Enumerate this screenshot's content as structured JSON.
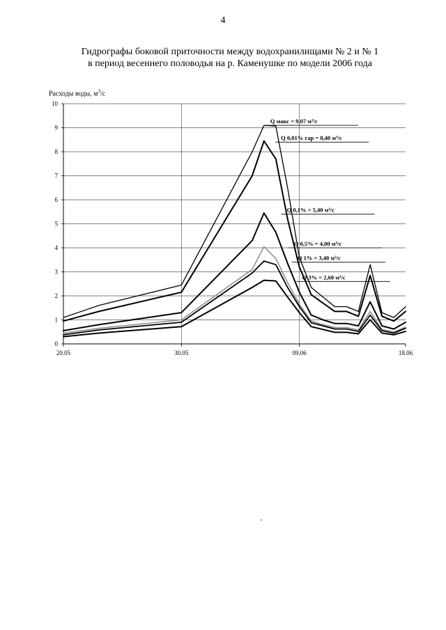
{
  "page": {
    "number": "4"
  },
  "title": {
    "line1": "Гидрографы боковой приточности между водохранилищами № 2 и № 1",
    "line2": "в период весеннего половодья на р. Каменушке по модели 2006 года"
  },
  "chart_data": {
    "type": "line",
    "ylabel_main": "Расходы воды, м",
    "ylabel_sup": "3",
    "ylabel_tail": "/с",
    "ylim": [
      0,
      10
    ],
    "yticks": [
      "0",
      "1",
      "2",
      "3",
      "4",
      "5",
      "6",
      "7",
      "8",
      "9",
      "10"
    ],
    "xrange": [
      0,
      29
    ],
    "xticks": [
      {
        "label": "20.05",
        "x": 0
      },
      {
        "label": "30.05",
        "x": 10
      },
      {
        "label": "09.06",
        "x": 20
      },
      {
        "label": "18.06",
        "x": 29
      }
    ],
    "grid": true,
    "x": [
      0,
      3,
      10,
      16,
      17,
      18,
      19,
      20,
      21,
      22,
      23,
      24,
      25,
      26,
      27,
      28,
      29
    ],
    "series": [
      {
        "color": "#000000",
        "width": 1.3,
        "values": [
          1.1,
          1.6,
          2.45,
          8.0,
          9.1,
          9.07,
          6.5,
          3.6,
          2.35,
          1.95,
          1.55,
          1.55,
          1.35,
          3.3,
          1.3,
          1.1,
          1.55
        ],
        "annotation": {
          "text": "Q макс = 9,07 м³/с",
          "at_x": 17.3,
          "y": 9.1
        }
      },
      {
        "color": "#000000",
        "width": 2,
        "values": [
          0.95,
          1.35,
          2.15,
          7.0,
          8.45,
          7.7,
          5.2,
          3.2,
          2.05,
          1.7,
          1.35,
          1.35,
          1.15,
          2.85,
          1.15,
          0.95,
          1.35
        ],
        "annotation": {
          "text": "Q 0,01% гар = 8,40 м³/с",
          "at_x": 18.2,
          "y": 8.4
        }
      },
      {
        "color": "#000000",
        "width": 2,
        "values": [
          0.55,
          0.8,
          1.3,
          4.3,
          5.45,
          4.65,
          3.35,
          2.15,
          1.2,
          1.0,
          0.85,
          0.85,
          0.75,
          1.75,
          0.75,
          0.62,
          0.9
        ],
        "annotation": {
          "text": "Q 0,1% = 5,40 м³/с",
          "at_x": 18.7,
          "y": 5.4
        }
      },
      {
        "color": "#8a8a8a",
        "width": 1.5,
        "values": [
          0.45,
          0.65,
          1.0,
          3.1,
          4.05,
          3.55,
          2.55,
          1.65,
          0.95,
          0.8,
          0.68,
          0.68,
          0.58,
          1.35,
          0.6,
          0.5,
          0.7
        ],
        "annotation": {
          "text": "Q 0,5% = 4,00 м³/с",
          "at_x": 19.3,
          "y": 4.0
        }
      },
      {
        "color": "#000000",
        "width": 1.8,
        "values": [
          0.38,
          0.58,
          0.9,
          2.95,
          3.45,
          3.3,
          2.35,
          1.55,
          0.88,
          0.75,
          0.62,
          0.62,
          0.52,
          1.2,
          0.55,
          0.45,
          0.65
        ],
        "annotation": {
          "text": "Q 1% = 3,40 м³/с",
          "at_x": 19.6,
          "y": 3.4
        }
      },
      {
        "color": "#000000",
        "width": 2,
        "values": [
          0.3,
          0.45,
          0.72,
          2.35,
          2.65,
          2.62,
          1.95,
          1.3,
          0.72,
          0.6,
          0.48,
          0.48,
          0.42,
          1.0,
          0.45,
          0.38,
          0.52
        ],
        "annotation": {
          "text": "Q 3% = 2,60 м³/с",
          "at_x": 20.0,
          "y": 2.6
        }
      }
    ]
  }
}
